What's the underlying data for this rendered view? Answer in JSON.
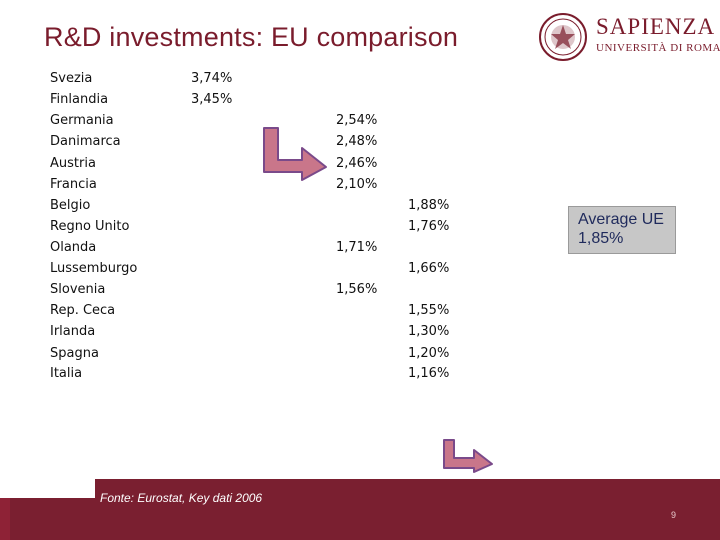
{
  "title": "R&D investments: EU comparison",
  "logo": {
    "name": "SAPIENZA",
    "subtitle": "UNIVERSITÀ DI ROMA"
  },
  "countries": [
    "Svezia",
    "Finlandia",
    "Germania",
    "Danimarca",
    "Austria",
    "Francia",
    "Belgio",
    "Regno Unito",
    "Olanda",
    "Lussemburgo",
    "Slovenia",
    "Rep. Ceca",
    "Irlanda",
    "Spagna",
    "Italia"
  ],
  "values": [
    "3,74%",
    "3,45%",
    "2,54%",
    "2,48%",
    "2,46%",
    "2,10%",
    "1,88%",
    "1,76%",
    "1,71%",
    "1,66%",
    "1,56%",
    "1,55%",
    "1,30%",
    "1,20%",
    "1,16%"
  ],
  "average": {
    "line1": "Average UE",
    "line2": "1,85%"
  },
  "source": "Fonte: Eurostat, Key dati 2006",
  "page_number": "9",
  "colors": {
    "brand": "#7a1c2c",
    "footer": "#7a1f30",
    "arrow_fill": "#c9768a",
    "arrow_stroke": "#7a4a8a"
  }
}
